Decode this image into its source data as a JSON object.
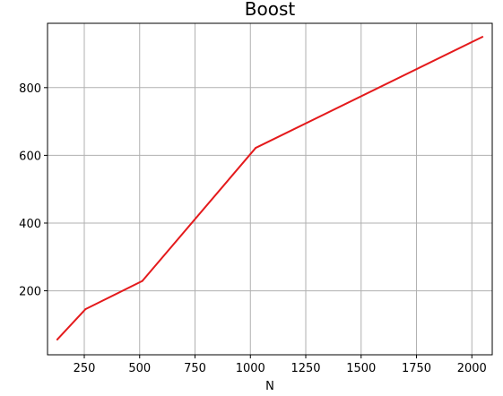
{
  "chart_data": {
    "type": "line",
    "title": "Boost",
    "xlabel": "N",
    "ylabel": "",
    "xlim": [
      84,
      2092
    ],
    "ylim": [
      11,
      990
    ],
    "xticks": [
      250,
      500,
      750,
      1000,
      1250,
      1500,
      1750,
      2000
    ],
    "yticks": [
      200,
      400,
      600,
      800
    ],
    "grid": true,
    "series": [
      {
        "color": "#e41a1c",
        "x": [
          128,
          256,
          512,
          1024,
          2048
        ],
        "y": [
          56,
          146,
          229,
          622,
          950
        ]
      }
    ]
  }
}
